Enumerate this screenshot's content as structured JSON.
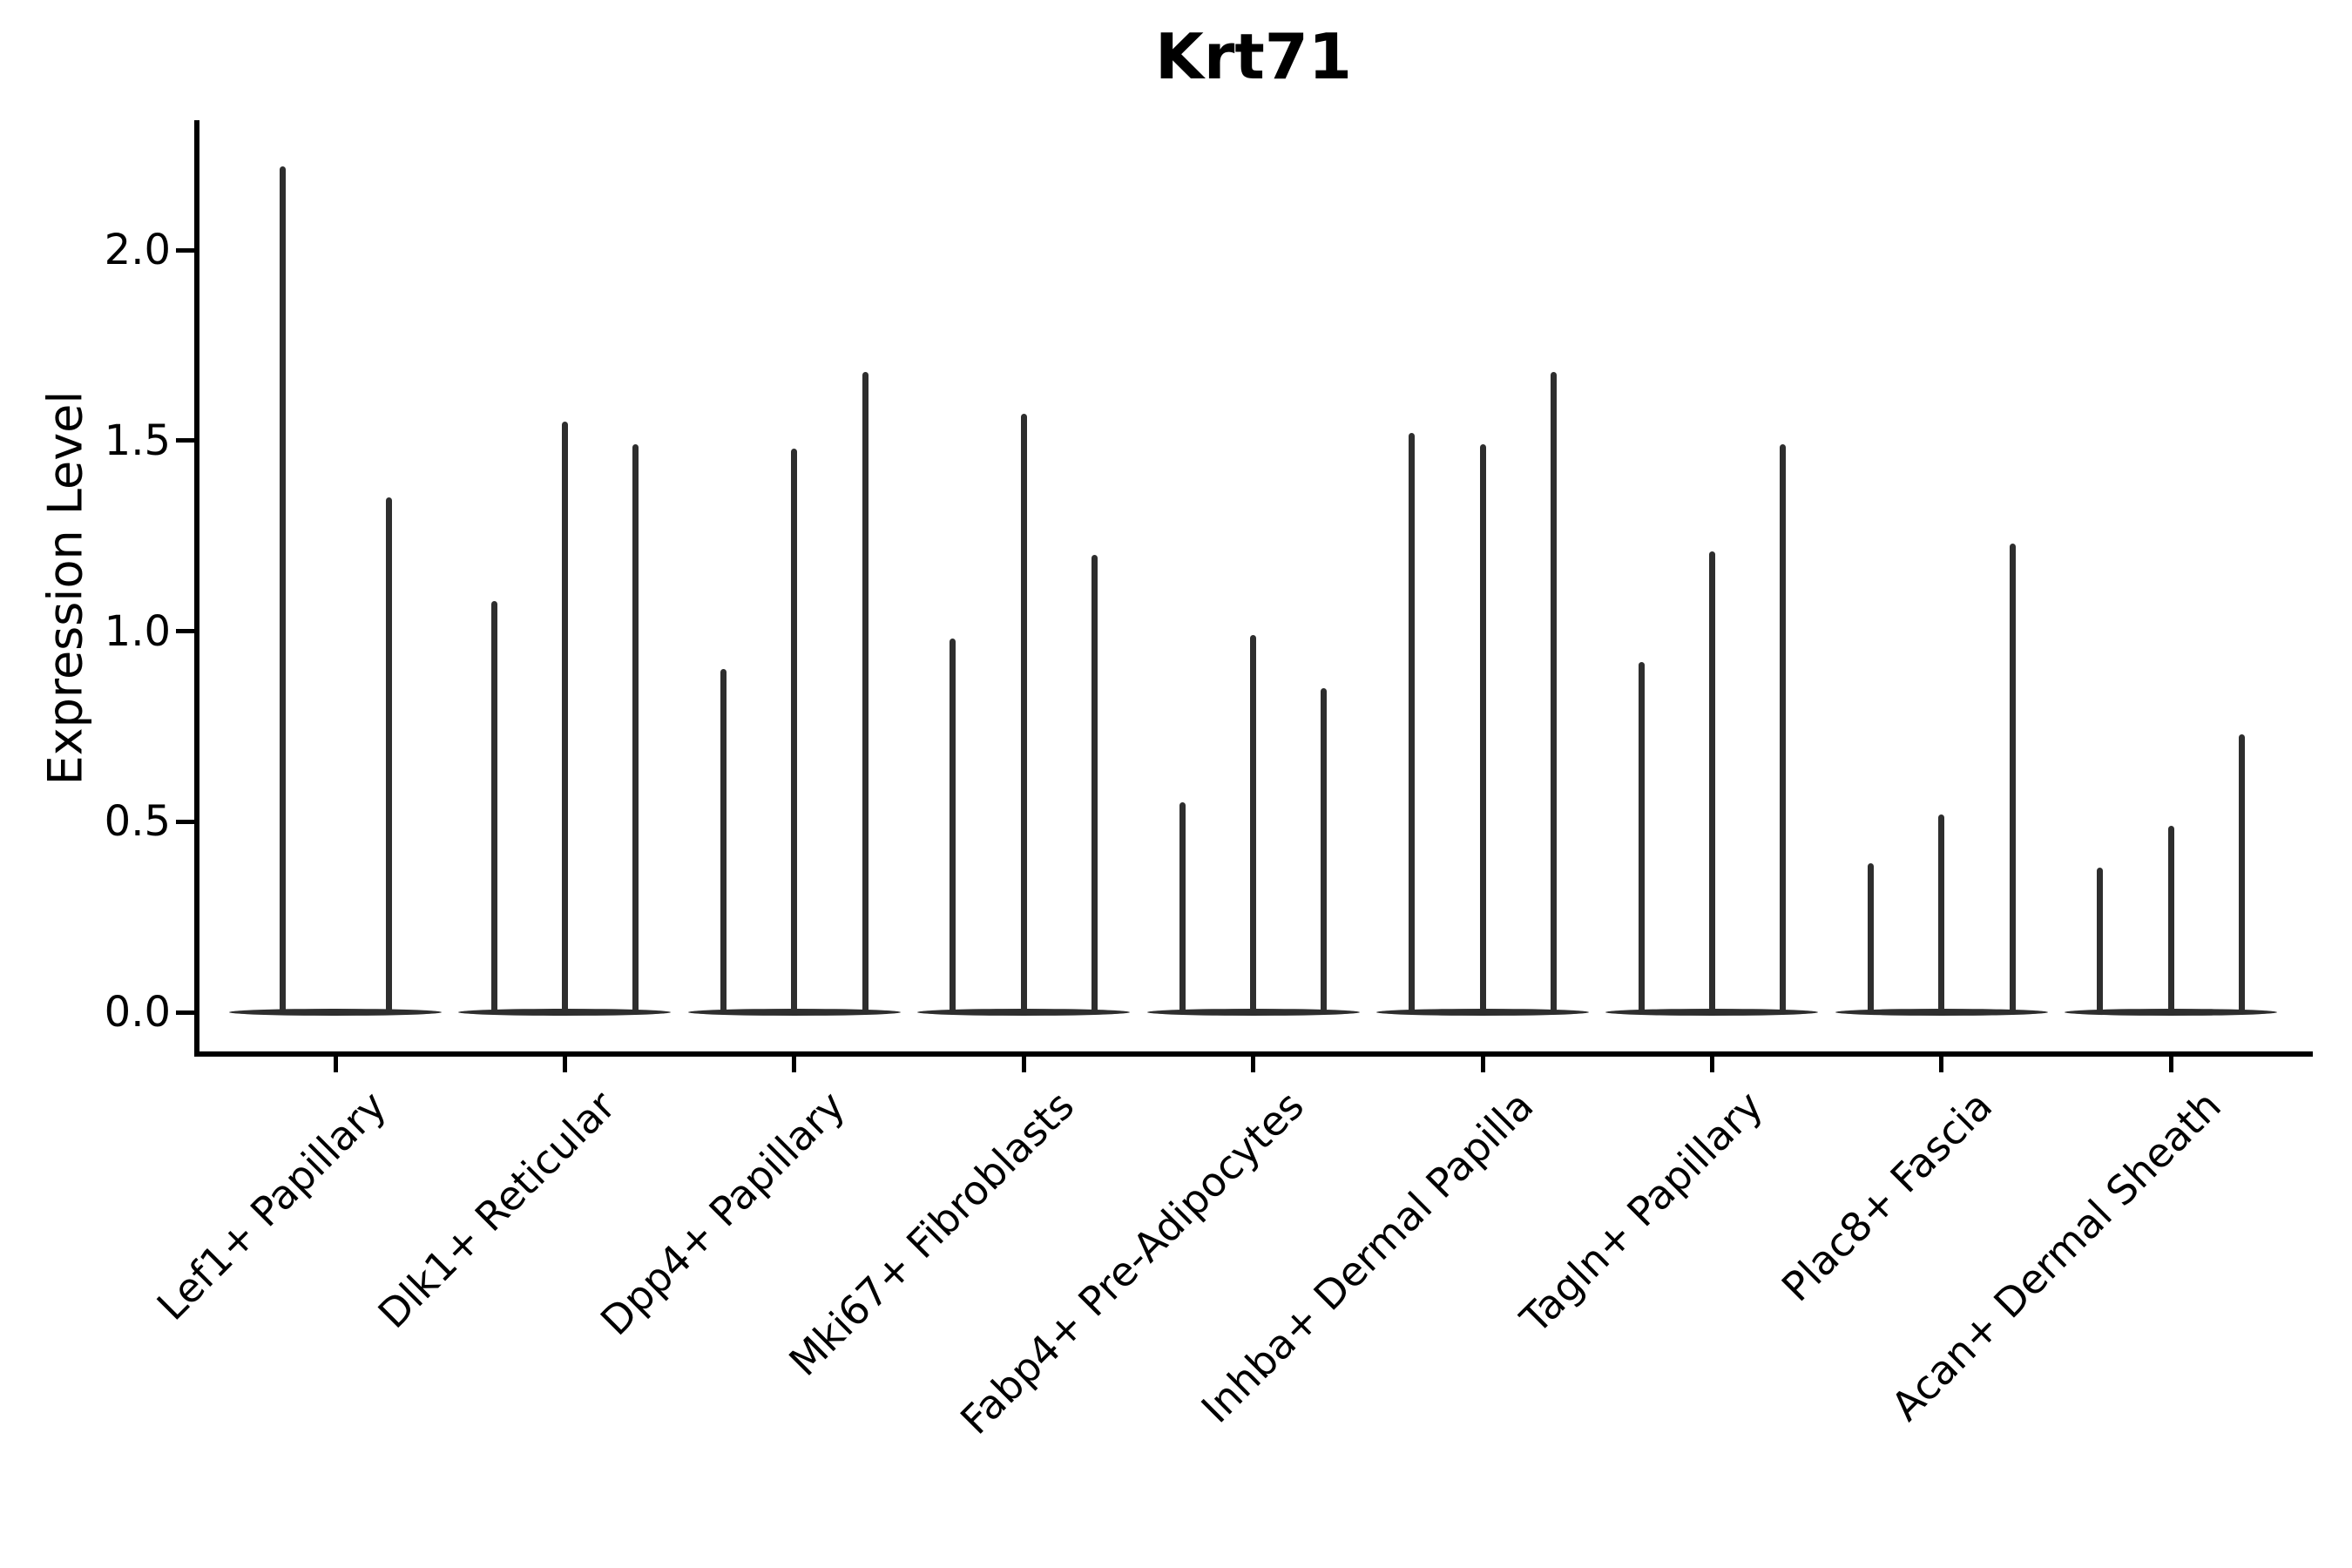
{
  "chart_data": {
    "type": "violin",
    "title": "Krt71",
    "ylabel": "Expression Level",
    "xlabel": "",
    "grid": false,
    "legend": null,
    "ylim": [
      -0.12,
      2.34
    ],
    "yticks": [
      {
        "label": "0.0",
        "value": 0.0
      },
      {
        "label": "0.5",
        "value": 0.5
      },
      {
        "label": "1.0",
        "value": 1.0
      },
      {
        "label": "1.5",
        "value": 1.5
      },
      {
        "label": "2.0",
        "value": 2.0
      }
    ],
    "categories": [
      "Lef1+ Papillary",
      "Dlk1+ Reticular",
      "Dpp4+ Papillary",
      "Mki67+ Fibroblasts",
      "Fabp4+ Pre-Adipocytes",
      "Inhba+ Dermal Papilla",
      "Tagln+ Papillary",
      "Plac8+ Fascia",
      "Acan+ Dermal Sheath"
    ],
    "groups": [
      {
        "category": "Lef1+ Papillary",
        "baseline_value": 0,
        "spike_maxima": [
          2.22,
          1.35
        ]
      },
      {
        "category": "Dlk1+ Reticular",
        "baseline_value": 0,
        "spike_maxima": [
          1.08,
          1.55,
          1.49
        ]
      },
      {
        "category": "Dpp4+ Papillary",
        "baseline_value": 0,
        "spike_maxima": [
          0.9,
          1.48,
          1.68
        ]
      },
      {
        "category": "Mki67+ Fibroblasts",
        "baseline_value": 0,
        "spike_maxima": [
          0.98,
          1.57,
          1.2
        ]
      },
      {
        "category": "Fabp4+ Pre-Adipocytes",
        "baseline_value": 0,
        "spike_maxima": [
          0.55,
          0.99,
          0.85
        ]
      },
      {
        "category": "Inhba+ Dermal Papilla",
        "baseline_value": 0,
        "spike_maxima": [
          1.52,
          1.49,
          1.68
        ]
      },
      {
        "category": "Tagln+ Papillary",
        "baseline_value": 0,
        "spike_maxima": [
          0.92,
          1.21,
          1.49
        ]
      },
      {
        "category": "Plac8+ Fascia",
        "baseline_value": 0,
        "spike_maxima": [
          0.39,
          0.52,
          1.23
        ]
      },
      {
        "category": "Acan+ Dermal Sheath",
        "baseline_value": 0,
        "spike_maxima": [
          0.38,
          0.49,
          0.73
        ]
      }
    ],
    "colors": {
      "violin": "#2e2e2e",
      "axis": "#000000",
      "text": "#000000",
      "background": "#ffffff"
    }
  }
}
